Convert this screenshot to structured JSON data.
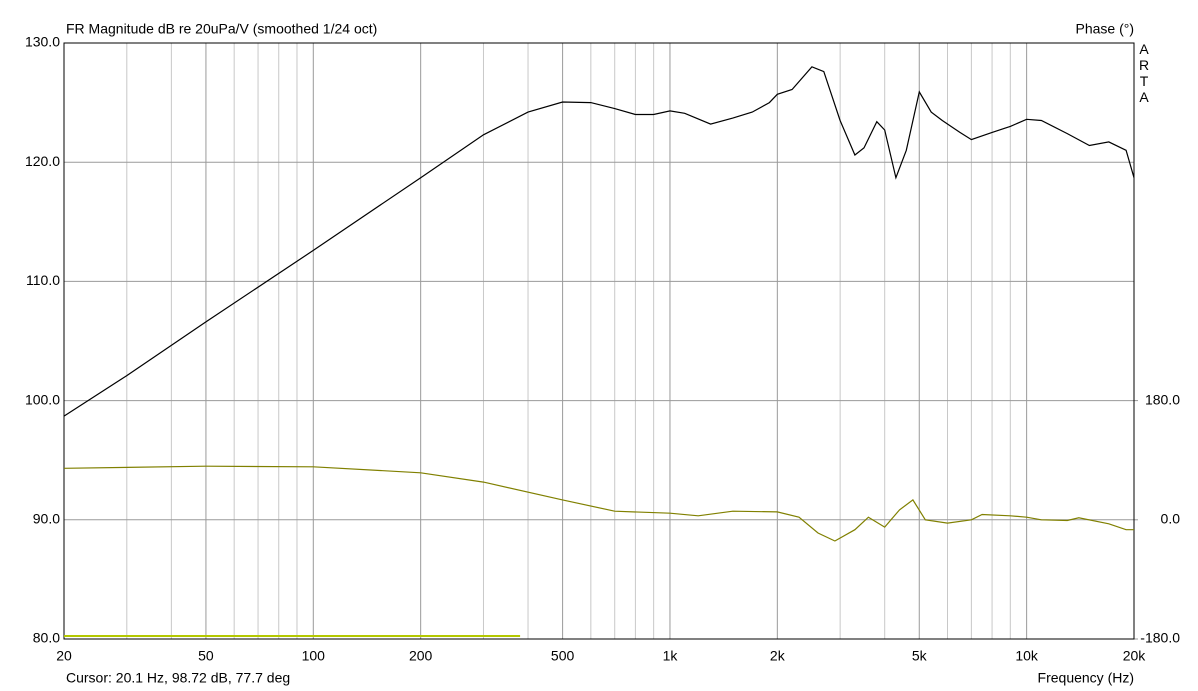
{
  "chart_data": {
    "type": "line",
    "title": "FR Magnitude dB re 20uPa/V (smoothed 1/24 oct)",
    "y2_label": "Phase (°)",
    "brand": "ARTA",
    "cursor": "Cursor: 20.1 Hz, 98.72 dB, 77.7 deg",
    "x_label": "Frequency (Hz)",
    "log_x": true,
    "grid": true,
    "xlim": [
      20,
      20000
    ],
    "xticks": [
      20,
      50,
      100,
      200,
      500,
      {
        "value": 1000,
        "label": "1k"
      },
      {
        "value": 2000,
        "label": "2k"
      },
      {
        "value": 5000,
        "label": "5k"
      },
      {
        "value": 10000,
        "label": "10k"
      },
      {
        "value": 20000,
        "label": "20k"
      }
    ],
    "x_minor_grid": [
      30,
      40,
      60,
      70,
      80,
      90,
      300,
      400,
      600,
      700,
      800,
      900,
      3000,
      4000,
      6000,
      7000,
      8000,
      9000
    ],
    "ylim": [
      80,
      130
    ],
    "yticks": [
      {
        "value": 80,
        "label": "80.0"
      },
      {
        "value": 90,
        "label": "90.0"
      },
      {
        "value": 100,
        "label": "100.0"
      },
      {
        "value": 110,
        "label": "110.0"
      },
      {
        "value": 120,
        "label": "120.0"
      },
      {
        "value": 130,
        "label": "130.0"
      }
    ],
    "y2lim": [
      -180,
      720
    ],
    "y2ticks": [
      {
        "value": -180,
        "label": "-180.0"
      },
      {
        "value": 0,
        "label": "0.0"
      },
      {
        "value": 180,
        "label": "180.0"
      }
    ],
    "series": [
      {
        "color": "#000000",
        "x": [
          20,
          30,
          50,
          100,
          200,
          300,
          400,
          500,
          600,
          700,
          800,
          900,
          1000,
          1100,
          1300,
          1500,
          1700,
          1900,
          2000,
          2200,
          2500,
          2700,
          3000,
          3300,
          3500,
          3800,
          4000,
          4300,
          4600,
          5000,
          5400,
          5800,
          6500,
          7000,
          8000,
          9000,
          10000,
          11000,
          13000,
          15000,
          17000,
          19000,
          20000
        ],
        "values": [
          98.7,
          102.1,
          106.6,
          112.6,
          118.7,
          122.3,
          124.2,
          125.05,
          125.0,
          124.5,
          124.0,
          124.0,
          124.3,
          124.1,
          123.2,
          123.7,
          124.2,
          125.0,
          125.7,
          126.1,
          128.0,
          127.6,
          123.5,
          120.6,
          121.2,
          123.4,
          122.7,
          118.7,
          121.0,
          125.9,
          124.2,
          123.5,
          122.5,
          121.9,
          122.5,
          123.0,
          123.6,
          123.5,
          122.4,
          121.4,
          121.7,
          121.0,
          118.7
        ]
      },
      {
        "color": "#808000",
        "axis": "y2",
        "x": [
          20,
          50,
          100,
          200,
          300,
          500,
          700,
          1000,
          1200,
          1500,
          2000,
          2300,
          2600,
          2900,
          3300,
          3600,
          4000,
          4400,
          4800,
          5200,
          6000,
          7000,
          7500,
          9000,
          10000,
          11000,
          13000,
          14000,
          17000,
          19000,
          20000
        ],
        "values": [
          77.7,
          81,
          80,
          71,
          57,
          30,
          13,
          10,
          6,
          13,
          12,
          4,
          -20,
          -32,
          -15,
          4,
          -11,
          15,
          30,
          0,
          -5,
          0,
          8,
          6,
          4,
          0,
          -1,
          3,
          -6,
          -15,
          -15
        ]
      },
      {
        "color": "#b4c800",
        "x": [
          20,
          380
        ],
        "values": [
          80.25,
          80.25
        ]
      }
    ]
  }
}
